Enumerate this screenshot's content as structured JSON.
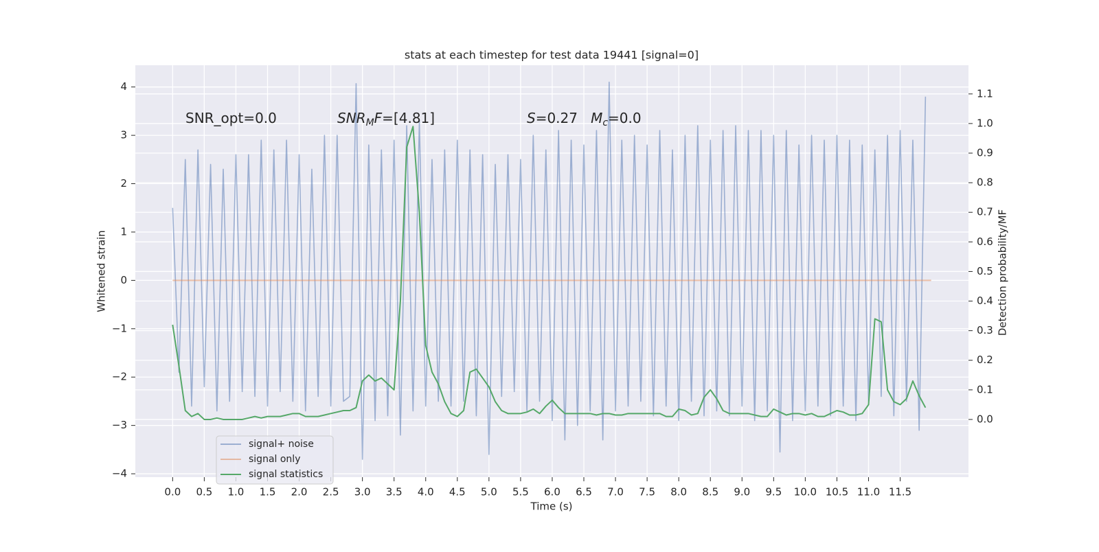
{
  "chart_data": {
    "type": "line",
    "title": "stats at each timestep for test data 19441 [signal=0]",
    "xlabel": "Time (s)",
    "ylabel": "Whitened strain",
    "y2label": "Detection probability/MF",
    "grid": true,
    "legend": "lower left",
    "xlim": [
      -0.59,
      12.58
    ],
    "ylim": [
      -4.07,
      4.45
    ],
    "y2lim": [
      -0.195,
      1.197
    ],
    "xticks": [
      {
        "value": 0,
        "label": "0.0"
      },
      {
        "value": 0.5,
        "label": "0.5"
      },
      {
        "value": 1,
        "label": "1.0"
      },
      {
        "value": 1.5,
        "label": "1.5"
      },
      {
        "value": 2,
        "label": "2.0"
      },
      {
        "value": 2.5,
        "label": "2.5"
      },
      {
        "value": 3,
        "label": "3.0"
      },
      {
        "value": 3.5,
        "label": "3.5"
      },
      {
        "value": 4,
        "label": "4.0"
      },
      {
        "value": 4.5,
        "label": "4.5"
      },
      {
        "value": 5,
        "label": "5.0"
      },
      {
        "value": 5.5,
        "label": "5.5"
      },
      {
        "value": 6,
        "label": "6.0"
      },
      {
        "value": 6.5,
        "label": "6.5"
      },
      {
        "value": 7,
        "label": "7.0"
      },
      {
        "value": 7.5,
        "label": "7.5"
      },
      {
        "value": 8,
        "label": "8.0"
      },
      {
        "value": 8.5,
        "label": "8.5"
      },
      {
        "value": 9,
        "label": "9.0"
      },
      {
        "value": 9.5,
        "label": "9.5"
      },
      {
        "value": 10,
        "label": "10.0"
      },
      {
        "value": 10.5,
        "label": "10.5"
      },
      {
        "value": 11,
        "label": "11.0"
      },
      {
        "value": 11.5,
        "label": "11.5"
      }
    ],
    "yticks": [
      {
        "value": -4,
        "label": "−4"
      },
      {
        "value": -3,
        "label": "−3"
      },
      {
        "value": -2,
        "label": "−2"
      },
      {
        "value": -1,
        "label": "−1"
      },
      0,
      1,
      2,
      3,
      4
    ],
    "y2ticks": [
      {
        "value": 0,
        "label": "0.0"
      },
      {
        "value": 0.1,
        "label": "0.1"
      },
      {
        "value": 0.2,
        "label": "0.2"
      },
      {
        "value": 0.3,
        "label": "0.3"
      },
      {
        "value": 0.4,
        "label": "0.4"
      },
      {
        "value": 0.5,
        "label": "0.5"
      },
      {
        "value": 0.6,
        "label": "0.6"
      },
      {
        "value": 0.7,
        "label": "0.7"
      },
      {
        "value": 0.8,
        "label": "0.8"
      },
      {
        "value": 0.9,
        "label": "0.9"
      },
      {
        "value": 1,
        "label": "1.0"
      },
      {
        "value": 1.1,
        "label": "1.1"
      }
    ],
    "annotations": [
      [
        {
          "text": "SNR_opt=0.0"
        }
      ],
      [
        {
          "text": "SNR",
          "style": "italic"
        },
        {
          "text": "M",
          "style": "italic-sub"
        },
        {
          "text": "F",
          "style": "italic"
        },
        {
          "text": "=[4.81]"
        }
      ],
      [
        {
          "text": "S",
          "style": "italic"
        },
        {
          "text": "=0.27   "
        },
        {
          "text": "M",
          "style": "italic"
        },
        {
          "text": "c",
          "style": "italic-sub"
        },
        {
          "text": "=0.0"
        }
      ]
    ],
    "x": [
      0.0,
      0.1,
      0.2,
      0.3,
      0.4,
      0.5,
      0.6,
      0.7,
      0.8,
      0.9,
      1.0,
      1.1,
      1.2,
      1.3,
      1.4,
      1.5,
      1.6,
      1.7,
      1.8,
      1.9,
      2.0,
      2.1,
      2.2,
      2.3,
      2.4,
      2.5,
      2.6,
      2.7,
      2.8,
      2.9,
      3.0,
      3.1,
      3.2,
      3.3,
      3.4,
      3.5,
      3.6,
      3.7,
      3.8,
      3.9,
      4.0,
      4.1,
      4.2,
      4.3,
      4.4,
      4.5,
      4.6,
      4.7,
      4.8,
      4.9,
      5.0,
      5.1,
      5.2,
      5.3,
      5.4,
      5.5,
      5.6,
      5.7,
      5.8,
      5.9,
      6.0,
      6.1,
      6.2,
      6.3,
      6.4,
      6.5,
      6.6,
      6.7,
      6.8,
      6.9,
      7.0,
      7.1,
      7.2,
      7.3,
      7.4,
      7.5,
      7.6,
      7.7,
      7.8,
      7.9,
      8.0,
      8.1,
      8.2,
      8.3,
      8.4,
      8.5,
      8.6,
      8.7,
      8.8,
      8.9,
      9.0,
      9.1,
      9.2,
      9.3,
      9.4,
      9.5,
      9.6,
      9.7,
      9.8,
      9.9,
      10.0,
      10.1,
      10.2,
      10.3,
      10.4,
      10.5,
      10.6,
      10.7,
      10.8,
      10.9,
      11.0,
      11.1,
      11.2,
      11.3,
      11.4,
      11.5,
      11.6,
      11.7,
      11.8,
      11.9
    ],
    "series": [
      {
        "name": "signal+ noise",
        "color": "#4c72b0",
        "alpha": 0.5,
        "axis": "y",
        "values": [
          1.5,
          -1.9,
          2.5,
          -2.6,
          2.7,
          -2.2,
          2.4,
          -2.7,
          2.3,
          -2.5,
          2.6,
          -2.3,
          2.6,
          -2.4,
          2.9,
          -2.6,
          2.7,
          -2.3,
          2.9,
          -2.5,
          2.6,
          -2.7,
          2.3,
          -2.4,
          3.0,
          -2.6,
          3.0,
          -2.5,
          -2.4,
          4.07,
          -3.7,
          2.8,
          -2.9,
          2.7,
          -2.8,
          2.9,
          -3.2,
          3.2,
          -2.7,
          3.3,
          -2.6,
          2.5,
          -2.5,
          2.7,
          -2.6,
          2.9,
          -2.5,
          2.7,
          -2.8,
          2.6,
          -3.6,
          2.4,
          -2.4,
          2.6,
          -2.3,
          2.5,
          -2.7,
          3.0,
          -2.5,
          2.7,
          -2.9,
          3.1,
          -3.3,
          2.9,
          -3.0,
          2.8,
          -2.7,
          3.1,
          -3.3,
          4.1,
          -2.7,
          2.9,
          -2.6,
          3.0,
          -2.5,
          2.8,
          -2.8,
          3.1,
          -2.6,
          2.7,
          -2.9,
          3.0,
          -2.5,
          3.2,
          -2.8,
          2.9,
          -2.7,
          3.1,
          -2.8,
          3.2,
          -2.6,
          3.1,
          -2.9,
          3.1,
          -2.7,
          3.0,
          -3.55,
          3.1,
          -2.9,
          2.8,
          -2.7,
          3.0,
          -2.6,
          2.9,
          -2.8,
          3.0,
          -2.6,
          2.9,
          -2.9,
          2.8,
          -2.5,
          2.7,
          -2.4,
          3.0,
          -2.8,
          3.1,
          -2.5,
          2.9,
          -3.1,
          3.8
        ]
      },
      {
        "name": "signal only",
        "color": "#dd8452",
        "alpha": 0.5,
        "axis": "y",
        "x": [
          0.0,
          11.99
        ],
        "values": [
          0,
          0
        ]
      },
      {
        "name": "signal statistics",
        "color": "#55a868",
        "alpha": 1,
        "axis": "y2",
        "values": [
          0.32,
          0.18,
          0.03,
          0.01,
          0.02,
          0.0,
          0.0,
          0.005,
          0.0,
          0.0,
          0.0,
          0.0,
          0.005,
          0.01,
          0.005,
          0.01,
          0.01,
          0.01,
          0.015,
          0.02,
          0.02,
          0.01,
          0.01,
          0.01,
          0.015,
          0.02,
          0.025,
          0.03,
          0.03,
          0.04,
          0.13,
          0.15,
          0.13,
          0.14,
          0.12,
          0.1,
          0.4,
          0.92,
          0.99,
          0.7,
          0.25,
          0.16,
          0.12,
          0.06,
          0.02,
          0.01,
          0.03,
          0.16,
          0.17,
          0.14,
          0.11,
          0.06,
          0.03,
          0.02,
          0.02,
          0.02,
          0.025,
          0.035,
          0.02,
          0.045,
          0.065,
          0.04,
          0.02,
          0.02,
          0.02,
          0.02,
          0.02,
          0.015,
          0.02,
          0.02,
          0.015,
          0.015,
          0.02,
          0.02,
          0.02,
          0.02,
          0.02,
          0.02,
          0.01,
          0.01,
          0.035,
          0.03,
          0.015,
          0.02,
          0.075,
          0.1,
          0.07,
          0.03,
          0.02,
          0.02,
          0.02,
          0.02,
          0.015,
          0.01,
          0.01,
          0.035,
          0.025,
          0.015,
          0.02,
          0.02,
          0.015,
          0.02,
          0.01,
          0.01,
          0.02,
          0.03,
          0.025,
          0.015,
          0.015,
          0.02,
          0.05,
          0.34,
          0.33,
          0.1,
          0.06,
          0.05,
          0.07,
          0.13,
          0.08,
          0.04
        ]
      }
    ]
  }
}
